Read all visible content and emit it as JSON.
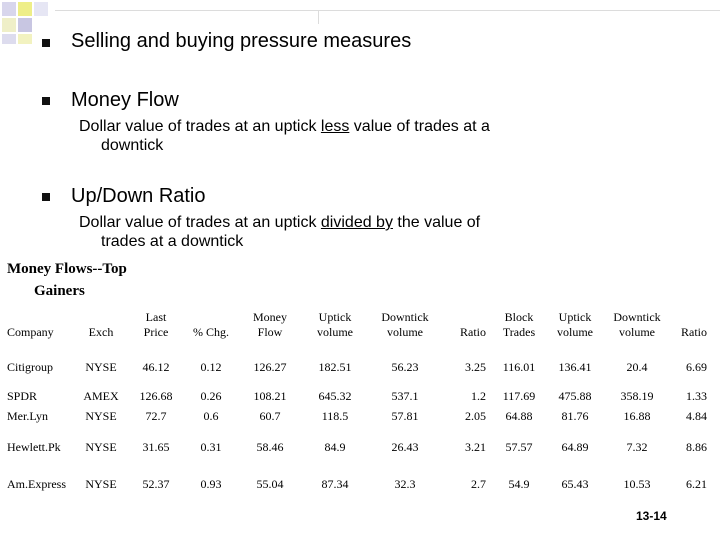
{
  "slide": {
    "bullets": [
      {
        "text": "Selling and buying pressure measures"
      },
      {
        "text": "Money Flow",
        "sub_a": "Dollar value of trades at an uptick ",
        "sub_u": "less",
        "sub_b": " value of trades at a",
        "sub_c": "downtick"
      },
      {
        "text": "Up/Down Ratio",
        "sub_a": "Dollar value of trades at an uptick ",
        "sub_u": "divided by",
        "sub_b": " the value of",
        "sub_c": "trades at a downtick"
      }
    ],
    "mf_title_1": "Money Flows--Top",
    "mf_title_2": "Gainers",
    "page_number": "13-14"
  },
  "table": {
    "headers": [
      [
        "Company"
      ],
      [
        "Exch"
      ],
      [
        "Last",
        "Price"
      ],
      [
        "% Chg."
      ],
      [
        "Money",
        "Flow"
      ],
      [
        "Uptick",
        "volume"
      ],
      [
        "Downtick",
        "volume"
      ],
      [
        "Ratio"
      ],
      [
        "Block",
        "Trades"
      ],
      [
        "Uptick",
        "volume"
      ],
      [
        "Downtick",
        "volume"
      ],
      [
        "Ratio"
      ]
    ],
    "rows": [
      [
        "Citigroup",
        "NYSE",
        "46.12",
        "0.12",
        "126.27",
        "182.51",
        "56.23",
        "3.25",
        "116.01",
        "136.41",
        "20.4",
        "6.69"
      ],
      [
        "SPDR",
        "AMEX",
        "126.68",
        "0.26",
        "108.21",
        "645.32",
        "537.1",
        "1.2",
        "117.69",
        "475.88",
        "358.19",
        "1.33"
      ],
      [
        "Mer.Lyn",
        "NYSE",
        "72.7",
        "0.6",
        "60.7",
        "118.5",
        "57.81",
        "2.05",
        "64.88",
        "81.76",
        "16.88",
        "4.84"
      ],
      [
        "Hewlett.Pk",
        "NYSE",
        "31.65",
        "0.31",
        "58.46",
        "84.9",
        "26.43",
        "3.21",
        "57.57",
        "64.89",
        "7.32",
        "8.86"
      ],
      [
        "Am.Express",
        "NYSE",
        "52.37",
        "0.93",
        "55.04",
        "87.34",
        "32.3",
        "2.7",
        "54.9",
        "65.43",
        "10.53",
        "6.21"
      ]
    ]
  }
}
